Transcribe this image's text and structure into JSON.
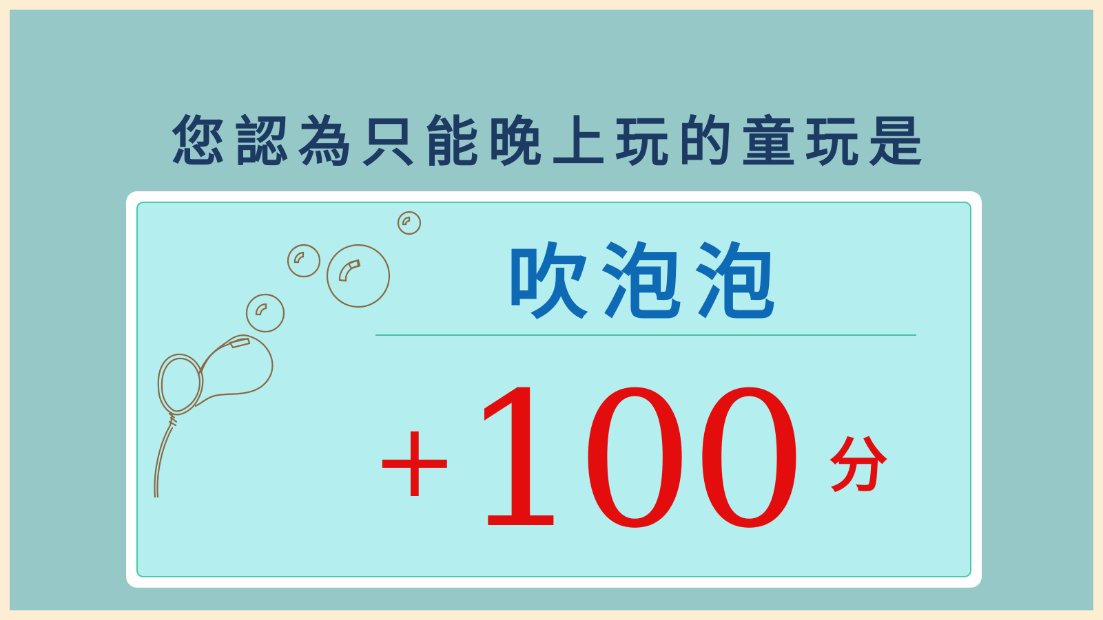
{
  "question": "您認為只能晚上玩的童玩是",
  "answer": "吹泡泡",
  "score": {
    "sign": "+",
    "value": "100",
    "unit": "分"
  },
  "colors": {
    "outer_border": "#fdeed3",
    "background": "#97c8c8",
    "card_fill": "#b4eeee",
    "card_border": "#49c9a8",
    "question_text": "#1d3a63",
    "answer_text": "#0f6ab5",
    "score_text": "#e30d0d",
    "illustration_stroke": "#8a6a43"
  },
  "icons": [
    "bubble-wand-icon",
    "bubble-icon"
  ]
}
